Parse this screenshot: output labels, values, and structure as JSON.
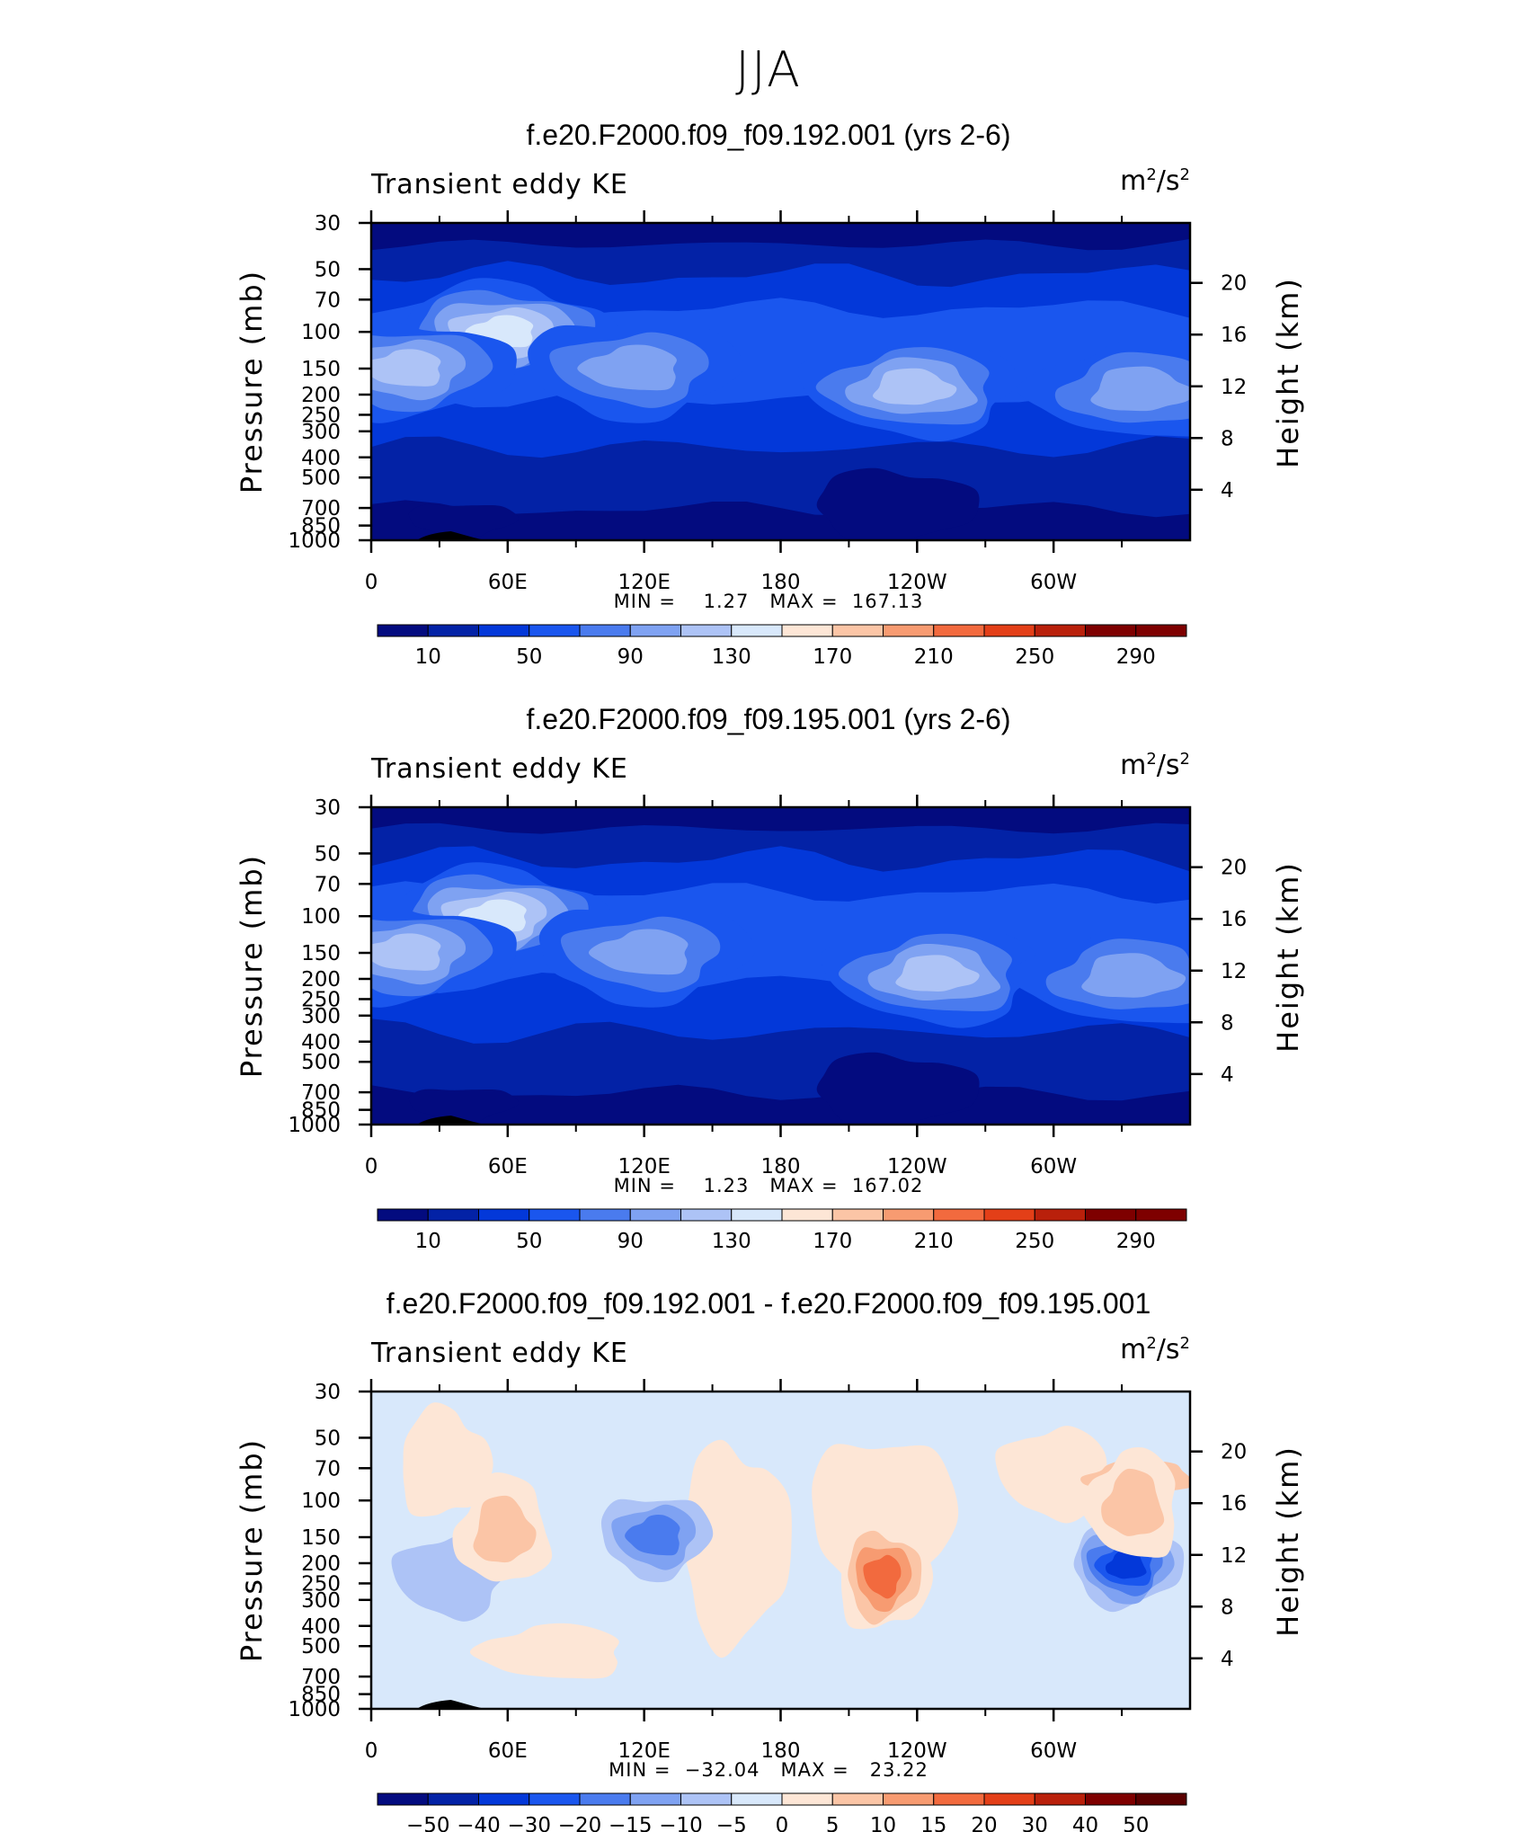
{
  "figure": {
    "suptitle": "JJA",
    "panels": [
      {
        "title": "f.e20.F2000.f09_f09.192.001 (yrs 2-6)",
        "variable": "Transient eddy KE",
        "units_base": "m",
        "units_exp1": "2",
        "units_sep": "/s",
        "units_exp2": "2",
        "minmax": "MIN =    1.27   MAX =  167.13",
        "colorbar_labels": [
          "10",
          "50",
          "90",
          "130",
          "170",
          "210",
          "250",
          "290"
        ]
      },
      {
        "title": "f.e20.F2000.f09_f09.195.001 (yrs 2-6)",
        "variable": "Transient eddy KE",
        "units_base": "m",
        "units_exp1": "2",
        "units_sep": "/s",
        "units_exp2": "2",
        "minmax": "MIN =    1.23   MAX =  167.02",
        "colorbar_labels": [
          "10",
          "50",
          "90",
          "130",
          "170",
          "210",
          "250",
          "290"
        ]
      },
      {
        "title": "f.e20.F2000.f09_f09.192.001 - f.e20.F2000.f09_f09.195.001",
        "variable": "Transient eddy KE",
        "units_base": "m",
        "units_exp1": "2",
        "units_sep": "/s",
        "units_exp2": "2",
        "minmax": "MIN =  −32.04   MAX =   23.22",
        "colorbar_labels": [
          "−50",
          "−40",
          "−30",
          "−20",
          "−15",
          "−10",
          "−5",
          "0",
          "5",
          "10",
          "15",
          "20",
          "30",
          "40",
          "50"
        ]
      }
    ]
  },
  "chart_data": [
    {
      "type": "heatmap",
      "title": "f.e20.F2000.f09_f09.192.001 (yrs 2-6)",
      "xlabel": "",
      "ylabel": "Pressure (mb)",
      "ylabel_right": "Height (km)",
      "x_ticks": [
        "0",
        "60E",
        "120E",
        "180",
        "120W",
        "60W"
      ],
      "y_ticks": [
        "30",
        "50",
        "70",
        "100",
        "150",
        "200",
        "250",
        "300",
        "400",
        "500",
        "700",
        "850",
        "1000"
      ],
      "y_ticks_right": [
        "20",
        "16",
        "12",
        "8",
        "4"
      ],
      "xlim": [
        0,
        360
      ],
      "ylim": [
        1000,
        30
      ],
      "y_scale": "log",
      "colorbar_levels": [
        10,
        30,
        50,
        70,
        90,
        110,
        130,
        150,
        170,
        190,
        210,
        230,
        250,
        270,
        290
      ],
      "min": 1.27,
      "max": 167.13,
      "features": [
        {
          "lon": 58,
          "p": 100,
          "value": 160
        },
        {
          "lon": 15,
          "p": 150,
          "value": 135
        },
        {
          "lon": 115,
          "p": 150,
          "value": 118
        },
        {
          "lon": 238,
          "p": 185,
          "value": 140
        },
        {
          "lon": 338,
          "p": 190,
          "value": 125
        }
      ]
    },
    {
      "type": "heatmap",
      "title": "f.e20.F2000.f09_f09.195.001 (yrs 2-6)",
      "xlabel": "",
      "ylabel": "Pressure (mb)",
      "ylabel_right": "Height (km)",
      "x_ticks": [
        "0",
        "60E",
        "120E",
        "180",
        "120W",
        "60W"
      ],
      "y_ticks": [
        "30",
        "50",
        "70",
        "100",
        "150",
        "200",
        "250",
        "300",
        "400",
        "500",
        "700",
        "850",
        "1000"
      ],
      "y_ticks_right": [
        "20",
        "16",
        "12",
        "8",
        "4"
      ],
      "xlim": [
        0,
        360
      ],
      "ylim": [
        1000,
        30
      ],
      "y_scale": "log",
      "colorbar_levels": [
        10,
        30,
        50,
        70,
        90,
        110,
        130,
        150,
        170,
        190,
        210,
        230,
        250,
        270,
        290
      ],
      "min": 1.23,
      "max": 167.02,
      "features": [
        {
          "lon": 55,
          "p": 100,
          "value": 160
        },
        {
          "lon": 15,
          "p": 150,
          "value": 130
        },
        {
          "lon": 120,
          "p": 150,
          "value": 120
        },
        {
          "lon": 248,
          "p": 190,
          "value": 145
        },
        {
          "lon": 334,
          "p": 195,
          "value": 128
        }
      ]
    },
    {
      "type": "heatmap",
      "title": "f.e20.F2000.f09_f09.192.001 - f.e20.F2000.f09_f09.195.001",
      "xlabel": "",
      "ylabel": "Pressure (mb)",
      "ylabel_right": "Height (km)",
      "x_ticks": [
        "0",
        "60E",
        "120E",
        "180",
        "120W",
        "60W"
      ],
      "y_ticks": [
        "30",
        "50",
        "70",
        "100",
        "150",
        "200",
        "250",
        "300",
        "400",
        "500",
        "700",
        "850",
        "1000"
      ],
      "y_ticks_right": [
        "20",
        "16",
        "12",
        "8",
        "4"
      ],
      "xlim": [
        0,
        360
      ],
      "ylim": [
        1000,
        30
      ],
      "y_scale": "log",
      "colorbar_levels": [
        -50,
        -40,
        -30,
        -20,
        -15,
        -10,
        -5,
        0,
        5,
        10,
        15,
        20,
        30,
        40,
        50
      ],
      "min": -32.04,
      "max": 23.22,
      "features": [
        {
          "lon": 225,
          "p": 230,
          "value": 23
        },
        {
          "lon": 332,
          "p": 205,
          "value": -32
        },
        {
          "lon": 125,
          "p": 148,
          "value": -20
        },
        {
          "lon": 35,
          "p": 230,
          "value": -10
        },
        {
          "lon": 335,
          "p": 105,
          "value": 10
        },
        {
          "lon": 58,
          "p": 140,
          "value": 10
        }
      ]
    }
  ]
}
